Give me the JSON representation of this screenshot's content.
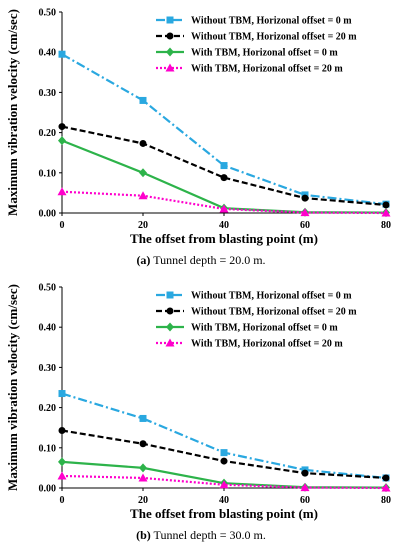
{
  "chart_data": [
    {
      "type": "line",
      "xlabel": "The offset from blasting point (m)",
      "ylabel": "Maximum vibration velocity (cm/sec)",
      "x": [
        0,
        20,
        40,
        60,
        80
      ],
      "ylim": [
        0,
        0.5
      ],
      "xlim": [
        0,
        80
      ],
      "xticks": [
        "0",
        "20",
        "40",
        "60",
        "80"
      ],
      "yticks": [
        "0.00",
        "0.10",
        "0.20",
        "0.30",
        "0.40",
        "0.50"
      ],
      "legend_position": "top-right",
      "grid": false,
      "series": [
        {
          "name": "Without TBM, Horizonal offset = 0 m",
          "values": [
            0.395,
            0.28,
            0.118,
            0.045,
            0.022
          ],
          "color": "#2aa8e0",
          "marker": "square",
          "dash": "dashdot"
        },
        {
          "name": "Without TBM, Horizonal offset = 20 m",
          "values": [
            0.215,
            0.173,
            0.088,
            0.037,
            0.02
          ],
          "color": "#000000",
          "marker": "circle",
          "dash": "dash"
        },
        {
          "name": "With TBM, Horizonal offset = 0 m",
          "values": [
            0.18,
            0.1,
            0.012,
            0.002,
            0.001
          ],
          "color": "#2db34a",
          "marker": "diamond",
          "dash": "solid"
        },
        {
          "name": "With TBM, Horizonal offset = 20 m",
          "values": [
            0.053,
            0.043,
            0.01,
            0.001,
            0.0
          ],
          "color": "#ff00cc",
          "marker": "triangle",
          "dash": "dot"
        }
      ],
      "caption_label": "(a)",
      "caption_text": " Tunnel depth = 20.0 m."
    },
    {
      "type": "line",
      "xlabel": "The offset from blasting point (m)",
      "ylabel": "Maximum vibration velocity (cm/sec)",
      "x": [
        0,
        20,
        40,
        60,
        80
      ],
      "ylim": [
        0,
        0.5
      ],
      "xlim": [
        0,
        80
      ],
      "xticks": [
        "0",
        "20",
        "40",
        "60",
        "80"
      ],
      "yticks": [
        "0.00",
        "0.10",
        "0.20",
        "0.30",
        "0.40",
        "0.50"
      ],
      "legend_position": "top-right",
      "grid": false,
      "series": [
        {
          "name": "Without TBM, Horizonal offset = 0 m",
          "values": [
            0.235,
            0.173,
            0.088,
            0.045,
            0.025
          ],
          "color": "#2aa8e0",
          "marker": "square",
          "dash": "dashdot"
        },
        {
          "name": "Without TBM, Horizonal offset = 20 m",
          "values": [
            0.143,
            0.11,
            0.067,
            0.037,
            0.025
          ],
          "color": "#000000",
          "marker": "circle",
          "dash": "dash"
        },
        {
          "name": "With TBM, Horizonal offset = 0 m",
          "values": [
            0.065,
            0.05,
            0.012,
            0.002,
            0.001
          ],
          "color": "#2db34a",
          "marker": "diamond",
          "dash": "solid"
        },
        {
          "name": "With TBM, Horizonal offset = 20 m",
          "values": [
            0.03,
            0.025,
            0.008,
            0.001,
            0.0
          ],
          "color": "#ff00cc",
          "marker": "triangle",
          "dash": "dot"
        }
      ],
      "caption_label": "(b)",
      "caption_text": " Tunnel depth = 30.0 m."
    }
  ]
}
